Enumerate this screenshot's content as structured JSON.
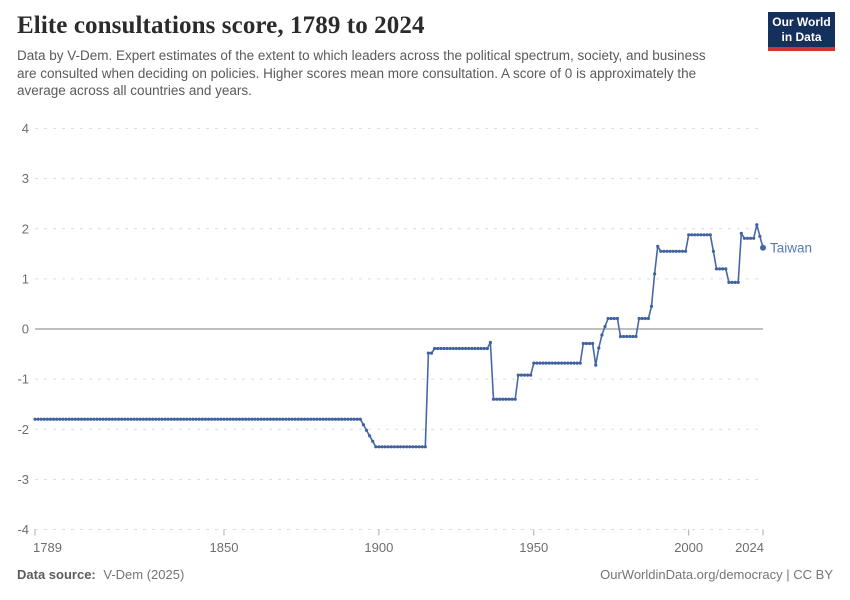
{
  "header": {
    "title": "Elite consultations score, 1789 to 2024",
    "subtitle": "Data by V-Dem. Expert estimates of the extent to which leaders across the political spectrum, society, and business are consulted when deciding on policies. Higher scores mean more consultation. A score of 0 is approximately the average across all countries and years."
  },
  "logo": {
    "line1": "Our World",
    "line2": "in Data",
    "bg": "#14305c",
    "accent": "#d0342c"
  },
  "chart_data": {
    "type": "line",
    "title": "Elite consultations score, 1789 to 2024",
    "xlabel": "",
    "ylabel": "",
    "xlim": [
      1789,
      2024
    ],
    "ylim": [
      -4,
      4
    ],
    "y_ticks": [
      4,
      3,
      2,
      1,
      0,
      -1,
      -2,
      -3,
      -4
    ],
    "x_ticks": [
      1789,
      1850,
      1900,
      1950,
      2000,
      2024
    ],
    "grid": "horizontal dashed gridlines, solid zero line",
    "legend_position": "label at end of line",
    "line_color": "#4669a5",
    "marker_color": "#3e62a1",
    "entity_label_color": "#577cb2",
    "axis_text_color": "#6e6e6e",
    "marker": "small dot at every year",
    "series": [
      {
        "name": "Taiwan",
        "breakpoints": [
          [
            1789,
            -1.8
          ],
          [
            1894,
            -1.8
          ],
          [
            1899,
            -2.35
          ],
          [
            1915,
            -2.35
          ],
          [
            1916,
            -0.48
          ],
          [
            1917,
            -0.48
          ],
          [
            1918,
            -0.39
          ],
          [
            1935,
            -0.39
          ],
          [
            1936,
            -0.27
          ],
          [
            1937,
            -1.4
          ],
          [
            1944,
            -1.4
          ],
          [
            1945,
            -0.92
          ],
          [
            1949,
            -0.92
          ],
          [
            1950,
            -0.68
          ],
          [
            1965,
            -0.68
          ],
          [
            1966,
            -0.29
          ],
          [
            1969,
            -0.29
          ],
          [
            1970,
            -0.72
          ],
          [
            1971,
            -0.38
          ],
          [
            1972,
            -0.12
          ],
          [
            1973,
            0.05
          ],
          [
            1974,
            0.21
          ],
          [
            1977,
            0.21
          ],
          [
            1978,
            -0.15
          ],
          [
            1983,
            -0.15
          ],
          [
            1984,
            0.21
          ],
          [
            1987,
            0.21
          ],
          [
            1988,
            0.45
          ],
          [
            1989,
            1.1
          ],
          [
            1990,
            1.65
          ],
          [
            1991,
            1.55
          ],
          [
            1999,
            1.55
          ],
          [
            2000,
            1.88
          ],
          [
            2007,
            1.88
          ],
          [
            2008,
            1.55
          ],
          [
            2009,
            1.2
          ],
          [
            2012,
            1.2
          ],
          [
            2013,
            0.93
          ],
          [
            2016,
            0.93
          ],
          [
            2017,
            1.91
          ],
          [
            2018,
            1.81
          ],
          [
            2021,
            1.81
          ],
          [
            2022,
            2.08
          ],
          [
            2023,
            1.85
          ],
          [
            2024,
            1.62
          ]
        ]
      }
    ]
  },
  "footer": {
    "source_label": "Data source:",
    "source_value": "V-Dem (2025)",
    "right_text": "OurWorldinData.org/democracy | CC BY"
  }
}
